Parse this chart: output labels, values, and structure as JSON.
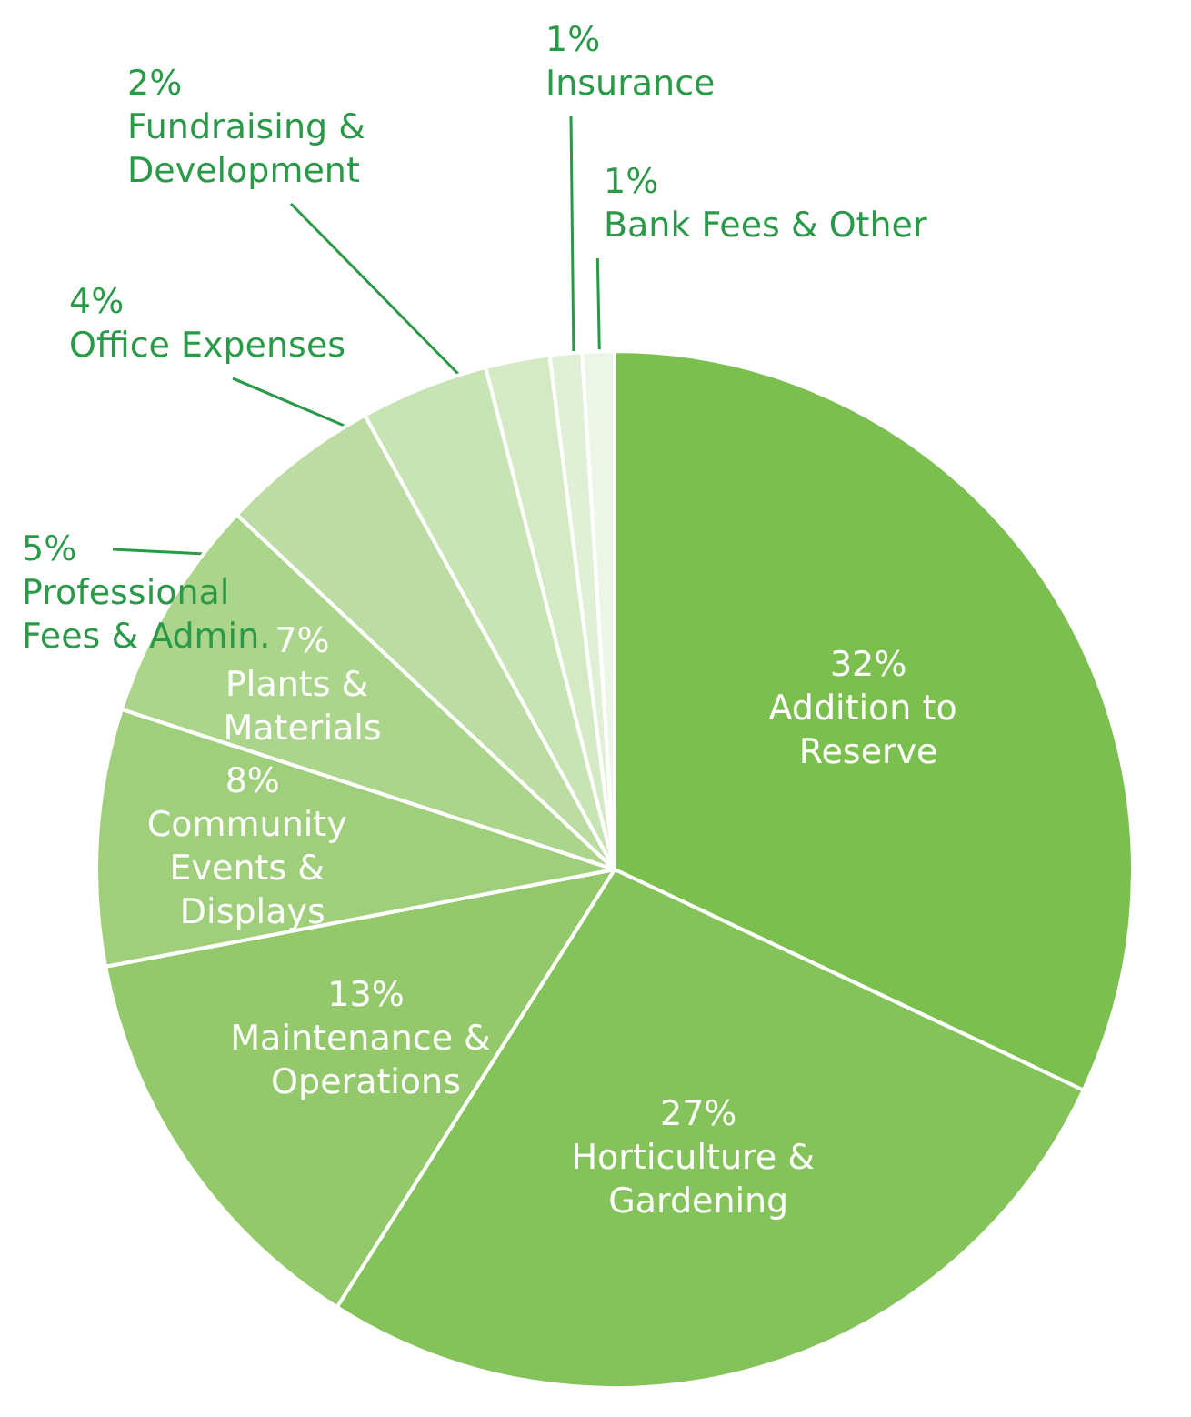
{
  "chart_data": {
    "type": "pie",
    "categories": [
      "Addition to Reserve",
      "Horticulture & Gardening",
      "Maintenance & Operations",
      "Community Events & Displays",
      "Plants & Materials",
      "Professional Fees & Admin.",
      "Office Expenses",
      "Fundraising & Development",
      "Insurance",
      "Bank Fees & Other"
    ],
    "values": [
      32,
      27,
      13,
      8,
      7,
      5,
      4,
      2,
      1,
      1
    ],
    "value_labels": [
      "32%",
      "27%",
      "13%",
      "8%",
      "7%",
      "5%",
      "4%",
      "2%",
      "1%",
      "1%"
    ],
    "colors": [
      "#7bbf4e",
      "#84c35a",
      "#93c96b",
      "#9fcf7b",
      "#acd58c",
      "#bcdca3",
      "#c8e3b4",
      "#d4eac5",
      "#e0f0d6",
      "#ecf6e6"
    ],
    "data_labels": true
  }
}
